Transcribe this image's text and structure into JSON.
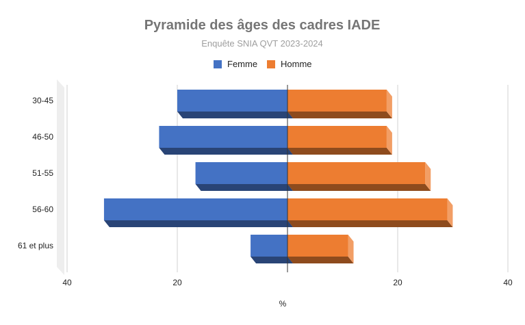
{
  "chart_data": {
    "type": "bar",
    "orientation": "horizontal",
    "style": "3d-population-pyramid",
    "title": "Pyramide des âges des cadres IADE",
    "subtitle": "Enquête SNIA QVT 2023-2024",
    "xlabel": "%",
    "ylabel": "",
    "categories": [
      "30-45",
      "46-50",
      "51-55",
      "56-60",
      "61 et plus"
    ],
    "series": [
      {
        "name": "Femme",
        "side": "left",
        "color": "#4472c4",
        "values": [
          20,
          23.3,
          16.7,
          33.3,
          6.7
        ]
      },
      {
        "name": "Homme",
        "side": "right",
        "color": "#ed7d31",
        "values": [
          18,
          18,
          25,
          29,
          11
        ]
      }
    ],
    "xlim": [
      -40,
      40
    ],
    "xticks": [
      {
        "value": -40,
        "label": "40"
      },
      {
        "value": -20,
        "label": "20"
      },
      {
        "value": 20,
        "label": "20"
      },
      {
        "value": 40,
        "label": "40"
      }
    ],
    "grid": true,
    "legend_position": "top"
  }
}
